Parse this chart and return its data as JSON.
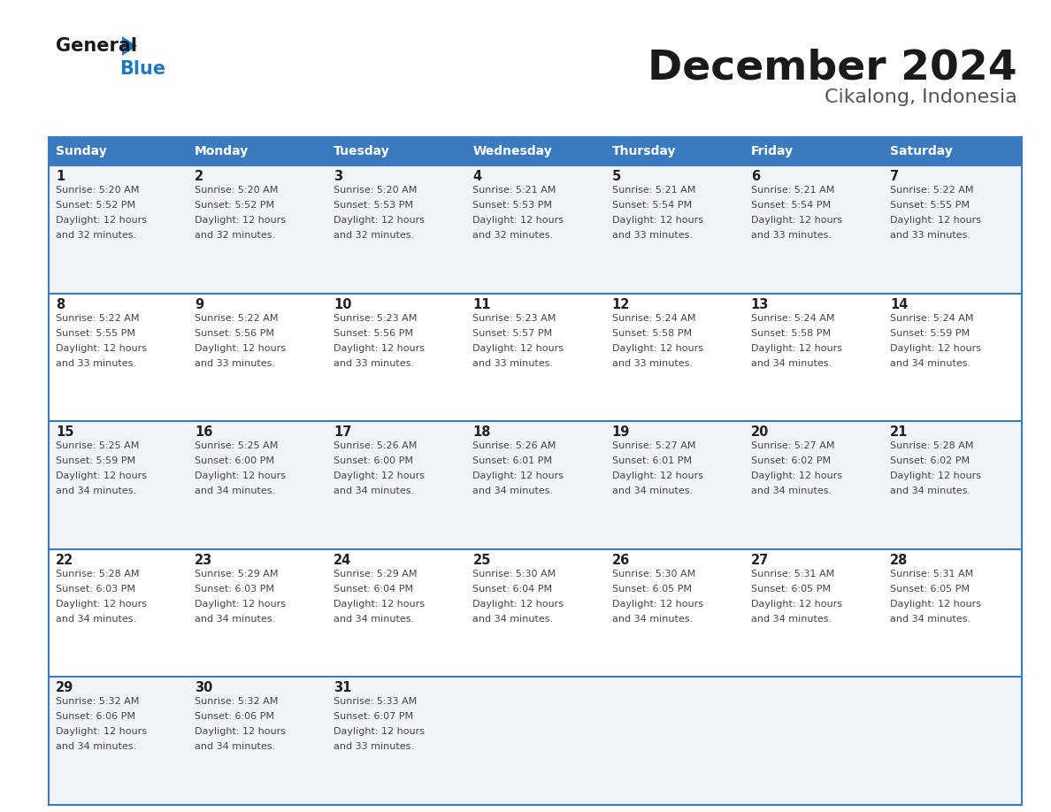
{
  "title": "December 2024",
  "subtitle": "Cikalong, Indonesia",
  "header_color": "#3a7abf",
  "header_text_color": "#ffffff",
  "row_bg_even": "#f0f4f8",
  "row_bg_odd": "#ffffff",
  "border_color": "#3a7abf",
  "text_color_day": "#222222",
  "text_color_info": "#444444",
  "days_of_week": [
    "Sunday",
    "Monday",
    "Tuesday",
    "Wednesday",
    "Thursday",
    "Friday",
    "Saturday"
  ],
  "calendar": [
    [
      {
        "day": 1,
        "sunrise": "5:20 AM",
        "sunset": "5:52 PM",
        "daylight_hours": 12,
        "daylight_minutes": 32
      },
      {
        "day": 2,
        "sunrise": "5:20 AM",
        "sunset": "5:52 PM",
        "daylight_hours": 12,
        "daylight_minutes": 32
      },
      {
        "day": 3,
        "sunrise": "5:20 AM",
        "sunset": "5:53 PM",
        "daylight_hours": 12,
        "daylight_minutes": 32
      },
      {
        "day": 4,
        "sunrise": "5:21 AM",
        "sunset": "5:53 PM",
        "daylight_hours": 12,
        "daylight_minutes": 32
      },
      {
        "day": 5,
        "sunrise": "5:21 AM",
        "sunset": "5:54 PM",
        "daylight_hours": 12,
        "daylight_minutes": 33
      },
      {
        "day": 6,
        "sunrise": "5:21 AM",
        "sunset": "5:54 PM",
        "daylight_hours": 12,
        "daylight_minutes": 33
      },
      {
        "day": 7,
        "sunrise": "5:22 AM",
        "sunset": "5:55 PM",
        "daylight_hours": 12,
        "daylight_minutes": 33
      }
    ],
    [
      {
        "day": 8,
        "sunrise": "5:22 AM",
        "sunset": "5:55 PM",
        "daylight_hours": 12,
        "daylight_minutes": 33
      },
      {
        "day": 9,
        "sunrise": "5:22 AM",
        "sunset": "5:56 PM",
        "daylight_hours": 12,
        "daylight_minutes": 33
      },
      {
        "day": 10,
        "sunrise": "5:23 AM",
        "sunset": "5:56 PM",
        "daylight_hours": 12,
        "daylight_minutes": 33
      },
      {
        "day": 11,
        "sunrise": "5:23 AM",
        "sunset": "5:57 PM",
        "daylight_hours": 12,
        "daylight_minutes": 33
      },
      {
        "day": 12,
        "sunrise": "5:24 AM",
        "sunset": "5:58 PM",
        "daylight_hours": 12,
        "daylight_minutes": 33
      },
      {
        "day": 13,
        "sunrise": "5:24 AM",
        "sunset": "5:58 PM",
        "daylight_hours": 12,
        "daylight_minutes": 34
      },
      {
        "day": 14,
        "sunrise": "5:24 AM",
        "sunset": "5:59 PM",
        "daylight_hours": 12,
        "daylight_minutes": 34
      }
    ],
    [
      {
        "day": 15,
        "sunrise": "5:25 AM",
        "sunset": "5:59 PM",
        "daylight_hours": 12,
        "daylight_minutes": 34
      },
      {
        "day": 16,
        "sunrise": "5:25 AM",
        "sunset": "6:00 PM",
        "daylight_hours": 12,
        "daylight_minutes": 34
      },
      {
        "day": 17,
        "sunrise": "5:26 AM",
        "sunset": "6:00 PM",
        "daylight_hours": 12,
        "daylight_minutes": 34
      },
      {
        "day": 18,
        "sunrise": "5:26 AM",
        "sunset": "6:01 PM",
        "daylight_hours": 12,
        "daylight_minutes": 34
      },
      {
        "day": 19,
        "sunrise": "5:27 AM",
        "sunset": "6:01 PM",
        "daylight_hours": 12,
        "daylight_minutes": 34
      },
      {
        "day": 20,
        "sunrise": "5:27 AM",
        "sunset": "6:02 PM",
        "daylight_hours": 12,
        "daylight_minutes": 34
      },
      {
        "day": 21,
        "sunrise": "5:28 AM",
        "sunset": "6:02 PM",
        "daylight_hours": 12,
        "daylight_minutes": 34
      }
    ],
    [
      {
        "day": 22,
        "sunrise": "5:28 AM",
        "sunset": "6:03 PM",
        "daylight_hours": 12,
        "daylight_minutes": 34
      },
      {
        "day": 23,
        "sunrise": "5:29 AM",
        "sunset": "6:03 PM",
        "daylight_hours": 12,
        "daylight_minutes": 34
      },
      {
        "day": 24,
        "sunrise": "5:29 AM",
        "sunset": "6:04 PM",
        "daylight_hours": 12,
        "daylight_minutes": 34
      },
      {
        "day": 25,
        "sunrise": "5:30 AM",
        "sunset": "6:04 PM",
        "daylight_hours": 12,
        "daylight_minutes": 34
      },
      {
        "day": 26,
        "sunrise": "5:30 AM",
        "sunset": "6:05 PM",
        "daylight_hours": 12,
        "daylight_minutes": 34
      },
      {
        "day": 27,
        "sunrise": "5:31 AM",
        "sunset": "6:05 PM",
        "daylight_hours": 12,
        "daylight_minutes": 34
      },
      {
        "day": 28,
        "sunrise": "5:31 AM",
        "sunset": "6:05 PM",
        "daylight_hours": 12,
        "daylight_minutes": 34
      }
    ],
    [
      {
        "day": 29,
        "sunrise": "5:32 AM",
        "sunset": "6:06 PM",
        "daylight_hours": 12,
        "daylight_minutes": 34
      },
      {
        "day": 30,
        "sunrise": "5:32 AM",
        "sunset": "6:06 PM",
        "daylight_hours": 12,
        "daylight_minutes": 34
      },
      {
        "day": 31,
        "sunrise": "5:33 AM",
        "sunset": "6:07 PM",
        "daylight_hours": 12,
        "daylight_minutes": 33
      },
      null,
      null,
      null,
      null
    ]
  ],
  "logo_text1": "General",
  "logo_text2": "Blue",
  "logo_color1": "#1a1a1a",
  "logo_color2": "#2278c0",
  "logo_triangle_color": "#2278c0",
  "title_color": "#1a1a1a",
  "subtitle_color": "#555555"
}
